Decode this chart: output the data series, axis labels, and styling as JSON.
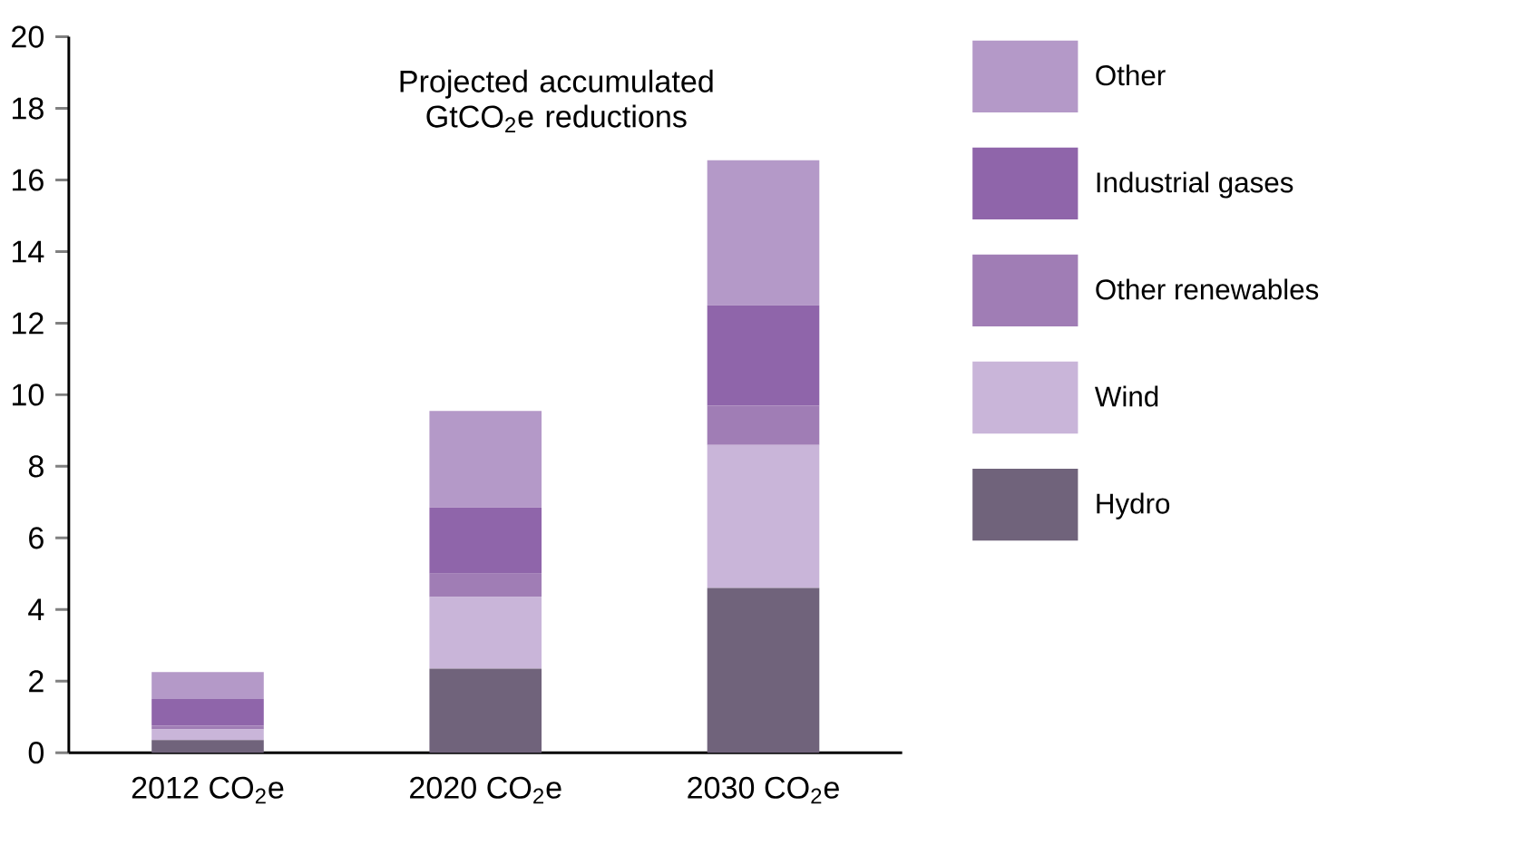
{
  "chart_data": {
    "type": "bar",
    "stacked": true,
    "title": "Projected accumulated GtCO$_{2}$e reductions",
    "categories": [
      "2012 CO$_{2}$e",
      "2020 CO$_{2}$e",
      "2030 CO$_{2}$e"
    ],
    "series": [
      {
        "name": "Hydro",
        "color": "#70637b",
        "values": [
          0.35,
          2.35,
          4.6
        ]
      },
      {
        "name": "Wind",
        "color": "#c9b5d9",
        "values": [
          0.3,
          2.0,
          4.0
        ]
      },
      {
        "name": "Other renewables",
        "color": "#a07db5",
        "values": [
          0.1,
          0.65,
          1.1
        ]
      },
      {
        "name": "Industrial gases",
        "color": "#8f65aa",
        "values": [
          0.75,
          1.85,
          2.8
        ]
      },
      {
        "name": "Other",
        "color": "#b499c8",
        "values": [
          0.75,
          2.7,
          4.05
        ]
      }
    ],
    "ylim": [
      0,
      20
    ],
    "yticks": [
      0,
      2,
      4,
      6,
      8,
      10,
      12,
      14,
      16,
      18,
      20
    ],
    "grid": false,
    "legend": "right"
  }
}
